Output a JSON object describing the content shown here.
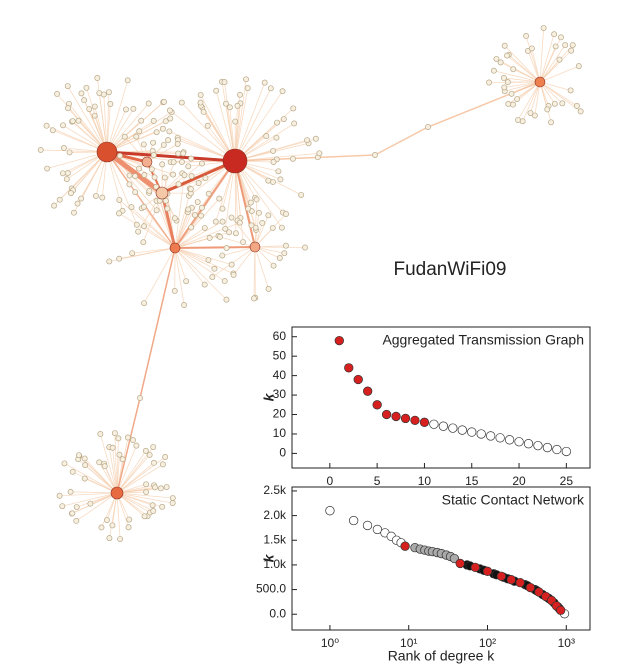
{
  "label": "FudanWiFi09",
  "chart_data": [
    {
      "type": "scatter",
      "title": "Aggregated Transmission Graph",
      "ylabel": "k",
      "x": [
        1,
        2,
        3,
        4,
        5,
        6,
        7,
        8,
        9,
        10,
        11,
        12,
        13,
        14,
        15,
        16,
        17,
        18,
        19,
        20,
        21,
        22,
        23,
        24,
        25
      ],
      "values": [
        58,
        44,
        38,
        32,
        25,
        20,
        19,
        18,
        17,
        16,
        15,
        14,
        13,
        12,
        11,
        10,
        9,
        8,
        7,
        6,
        5,
        4,
        3,
        2,
        1
      ],
      "point_colors": [
        "#d62020",
        "#d62020",
        "#d62020",
        "#d62020",
        "#d62020",
        "#d62020",
        "#d62020",
        "#d62020",
        "#d62020",
        "#d62020",
        "#ffffff",
        "#ffffff",
        "#ffffff",
        "#ffffff",
        "#ffffff",
        "#ffffff",
        "#ffffff",
        "#ffffff",
        "#ffffff",
        "#ffffff",
        "#ffffff",
        "#ffffff",
        "#ffffff",
        "#ffffff",
        "#ffffff"
      ],
      "xlim": [
        -4,
        27.5
      ],
      "xticks": [
        0,
        5,
        10,
        15,
        20,
        25
      ],
      "ylim": [
        -7.5,
        65
      ],
      "yticks": [
        0,
        10,
        20,
        30,
        40,
        50,
        60
      ]
    },
    {
      "type": "scatter",
      "title": "Static Contact Network",
      "xlabel": "Rank of degree k",
      "ylabel": "k",
      "log_x": true,
      "x": [
        1,
        2,
        3,
        4,
        5,
        6,
        7,
        8,
        9,
        12,
        14,
        16,
        18,
        20,
        23,
        26,
        30,
        34,
        38,
        45,
        55,
        60,
        70,
        80,
        90,
        100,
        120,
        130,
        150,
        160,
        180,
        200,
        220,
        260,
        300,
        320,
        350,
        400,
        420,
        450,
        500,
        550,
        600,
        650,
        700,
        750,
        780,
        820,
        850,
        950
      ],
      "values": [
        2100,
        1900,
        1800,
        1720,
        1650,
        1580,
        1500,
        1450,
        1380,
        1350,
        1320,
        1300,
        1280,
        1270,
        1250,
        1230,
        1200,
        1170,
        1130,
        1030,
        1000,
        980,
        950,
        920,
        890,
        870,
        820,
        800,
        770,
        750,
        720,
        700,
        670,
        640,
        600,
        580,
        540,
        500,
        480,
        450,
        400,
        360,
        320,
        280,
        230,
        170,
        150,
        110,
        80,
        10
      ],
      "point_colors": [
        "#ffffff",
        "#ffffff",
        "#ffffff",
        "#ffffff",
        "#ffffff",
        "#ffffff",
        "#ffffff",
        "#ffffff",
        "#d62020",
        "#aaaaaa",
        "#aaaaaa",
        "#aaaaaa",
        "#aaaaaa",
        "#aaaaaa",
        "#aaaaaa",
        "#aaaaaa",
        "#aaaaaa",
        "#aaaaaa",
        "#aaaaaa",
        "#d62020",
        "#111111",
        "#111111",
        "#d62020",
        "#111111",
        "#111111",
        "#d62020",
        "#111111",
        "#111111",
        "#d62020",
        "#111111",
        "#111111",
        "#d62020",
        "#111111",
        "#d62020",
        "#111111",
        "#111111",
        "#d62020",
        "#111111",
        "#111111",
        "#d62020",
        "#111111",
        "#d62020",
        "#111111",
        "#d62020",
        "#111111",
        "#d62020",
        "#111111",
        "#111111",
        "#d62020",
        "#ffffff"
      ],
      "xlim": [
        0.33,
        2000
      ],
      "xticks": [
        {
          "value": 1,
          "label": "10⁰"
        },
        {
          "value": 10,
          "label": "10¹"
        },
        {
          "value": 100,
          "label": "10²"
        },
        {
          "value": 1000,
          "label": "10³"
        }
      ],
      "ylim": [
        -320,
        2580
      ],
      "yticks": [
        {
          "value": 0,
          "label": "0.0"
        },
        {
          "value": 500,
          "label": "500.0"
        },
        {
          "value": 1000,
          "label": "1.0k"
        },
        {
          "value": 1500,
          "label": "1.5k"
        },
        {
          "value": 2000,
          "label": "2.0k"
        },
        {
          "value": 2500,
          "label": "2.5k"
        }
      ]
    }
  ]
}
